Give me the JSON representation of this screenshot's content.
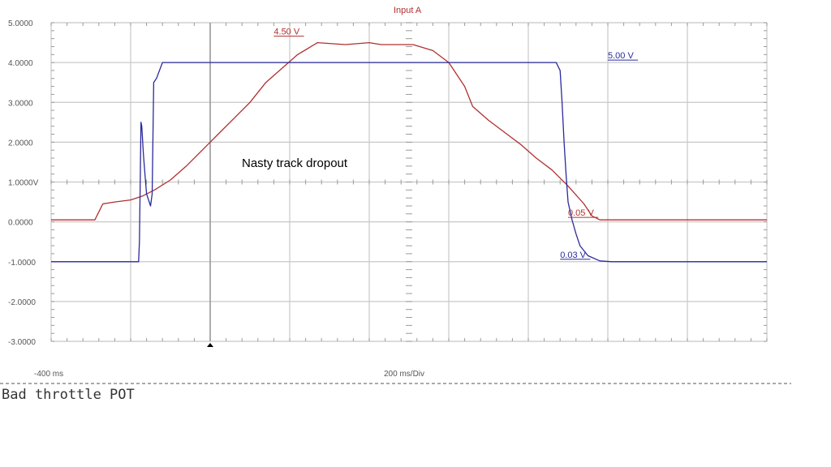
{
  "chart_data": {
    "type": "line",
    "title": "Input A",
    "ylabel": "",
    "xlabel": "200 ms/Div",
    "x_start_label": "-400 ms",
    "ylim": [
      -3,
      5
    ],
    "xlim": [
      -400,
      1400
    ],
    "ytick_labels": [
      "5.0000",
      "4.0000",
      "3.0000",
      "2.0000",
      "1.0000V",
      "0.0000",
      "-1.0000",
      "-2.0000",
      "-3.0000"
    ],
    "grid": true,
    "colors": {
      "red_trace": "#b03030",
      "blue_trace": "#2a2a9c",
      "grid": "#c8c8c8",
      "axis_label": "#b03030"
    },
    "series": [
      {
        "color_key": "red_trace",
        "x": [
          -400,
          -290,
          -270,
          -240,
          -200,
          -170,
          -140,
          -100,
          -60,
          -20,
          20,
          60,
          100,
          140,
          180,
          220,
          270,
          340,
          400,
          430,
          460,
          510,
          560,
          600,
          640,
          660,
          700,
          740,
          780,
          820,
          860,
          900,
          940,
          960,
          980,
          1000,
          1100,
          1200,
          1400
        ],
        "y": [
          0.05,
          0.05,
          0.45,
          0.5,
          0.55,
          0.65,
          0.8,
          1.05,
          1.4,
          1.8,
          2.2,
          2.6,
          3.0,
          3.5,
          3.85,
          4.2,
          4.5,
          4.45,
          4.5,
          4.45,
          4.45,
          4.45,
          4.3,
          4.0,
          3.4,
          2.9,
          2.55,
          2.25,
          1.95,
          1.6,
          1.3,
          0.9,
          0.45,
          0.15,
          0.05,
          0.05,
          0.05,
          0.05,
          0.05
        ]
      },
      {
        "color_key": "blue_trace",
        "x": [
          -400,
          -180,
          -178,
          -176,
          -174,
          -172,
          -168,
          -164,
          -160,
          -150,
          -146,
          -142,
          -135,
          -120,
          -110,
          0,
          200,
          600,
          870,
          880,
          885,
          890,
          895,
          900,
          910,
          920,
          930,
          950,
          980,
          1010,
          1100,
          1400
        ],
        "y": [
          -1.0,
          -1.0,
          -0.5,
          1.0,
          2.5,
          2.4,
          1.7,
          1.2,
          0.7,
          0.4,
          0.7,
          3.5,
          3.6,
          4.0,
          4.0,
          4.0,
          4.0,
          4.0,
          4.0,
          3.8,
          3.0,
          2.0,
          1.2,
          0.5,
          0.05,
          -0.3,
          -0.6,
          -0.85,
          -0.98,
          -1.0,
          -1.0,
          -1.0
        ]
      }
    ],
    "annotations": [
      {
        "text": "4.50 V",
        "color_key": "red_trace",
        "x": 160,
        "y": 4.6
      },
      {
        "text": "5.00 V",
        "color_key": "blue_trace",
        "x": 1000,
        "y": 4.0
      },
      {
        "text": "0.05 V",
        "color_key": "red_trace",
        "x": 900,
        "y": 0.05
      },
      {
        "text": "0.03 V",
        "color_key": "blue_trace",
        "x": 880,
        "y": -1.0
      }
    ],
    "note": "Nasty track dropout"
  },
  "caption": "Bad throttle POT"
}
